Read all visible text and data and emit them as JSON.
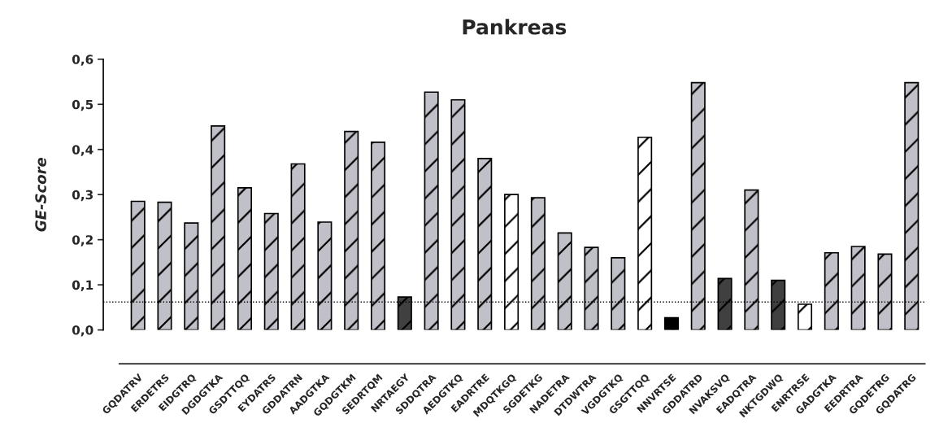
{
  "chart_data": {
    "type": "bar",
    "title": "Pankreas",
    "ylabel": "GE-Score",
    "categories": [
      "GQDATRV",
      "ERDETRS",
      "EIDGTRQ",
      "DGDGTKA",
      "GSDTTQQ",
      "EYDATRS",
      "GDDATRN",
      "AADGTKA",
      "GQDGTKM",
      "SEDRTQM",
      "NRTAEGY",
      "SDDQTRA",
      "AEDGTKQ",
      "EADRTRE",
      "MDQTKGQ",
      "SGDETKG",
      "NADETRA",
      "DTDWTRA",
      "VGDGTKQ",
      "GSGTTQQ",
      "NNVRTSE",
      "GDDATRD",
      "NVAKSVQ",
      "EADQTRA",
      "NKTGDWQ",
      "ENRTRSE",
      "GADGTKA",
      "EEDRTRA",
      "GQDETRG",
      "GQDATRG"
    ],
    "values": [
      0.285,
      0.283,
      0.237,
      0.452,
      0.315,
      0.258,
      0.368,
      0.239,
      0.44,
      0.416,
      0.073,
      0.527,
      0.51,
      0.38,
      0.3,
      0.293,
      0.215,
      0.183,
      0.16,
      0.427,
      0.027,
      0.548,
      0.114,
      0.31,
      0.11,
      0.057,
      0.171,
      0.185,
      0.168,
      0.548
    ],
    "colors": [
      "#c0c0c8",
      "#c0c0c8",
      "#c0c0c8",
      "#c0c0c8",
      "#c0c0c8",
      "#c0c0c8",
      "#c0c0c8",
      "#c0c0c8",
      "#c0c0c8",
      "#c0c0c8",
      "#404040",
      "#c0c0c8",
      "#c0c0c8",
      "#c0c0c8",
      "#ffffff",
      "#c0c0c8",
      "#c0c0c8",
      "#c0c0c8",
      "#c0c0c8",
      "#ffffff",
      "#000000",
      "#c0c0c8",
      "#404040",
      "#c0c0c8",
      "#404040",
      "#ffffff",
      "#c0c0c8",
      "#c0c0c8",
      "#c0c0c8",
      "#c0c0c8"
    ],
    "ylim": [
      0,
      0.6
    ],
    "yticks": [
      {
        "value": 0,
        "label": "0,0"
      },
      {
        "value": 0.1,
        "label": "0,1"
      },
      {
        "value": 0.2,
        "label": "0,2"
      },
      {
        "value": 0.3,
        "label": "0,3"
      },
      {
        "value": 0.4,
        "label": "0,4"
      },
      {
        "value": 0.5,
        "label": "0,5"
      },
      {
        "value": 0.6,
        "label": "0,6"
      }
    ],
    "ref_lines": [
      {
        "axis": "y",
        "value": 0.062,
        "label": null,
        "color": "#000000",
        "line_style": "dotted"
      }
    ],
    "grid": false,
    "legend": false
  }
}
